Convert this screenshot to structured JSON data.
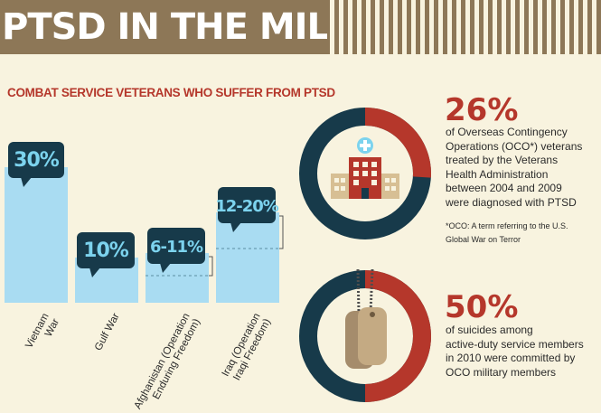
{
  "header": {
    "title": "PTSD IN THE MILITARY"
  },
  "chart_data": {
    "type": "bar",
    "title": "COMBAT SERVICE VETERANS WHO SUFFER FROM PTSD",
    "categories": [
      [
        "Vietnam",
        "War"
      ],
      [
        "Gulf War"
      ],
      [
        "Afghanistan (Operation",
        "Enduring Freedom)"
      ],
      [
        "Iraq (Operation",
        "Iraqi Freedom)"
      ]
    ],
    "value_labels": [
      "30%",
      "10%",
      "6-11%",
      "12-20%"
    ],
    "values": [
      30,
      10,
      11,
      20
    ],
    "low_values": [
      null,
      null,
      6,
      12
    ],
    "colors": {
      "bar": "#a9dcf2",
      "bubble": "#173a4a",
      "bubble_text": "#7cd3ee"
    }
  },
  "stats": [
    {
      "percent": "26%",
      "lines": [
        "of Overseas Contingency",
        "Operations (OCO*) veterans",
        "treated by the Veterans",
        "Health Administration",
        "between 2004 and 2009",
        "were diagnosed with PTSD"
      ],
      "note_lines": [
        "*OCO: A term referring to the U.S.",
        "Global War on Terror"
      ],
      "icon": "hospital-icon",
      "fraction": 0.26
    },
    {
      "percent": "50%",
      "lines": [
        "of suicides among",
        "active-duty service members",
        "in 2010 were committed by",
        "OCO military members"
      ],
      "icon": "dog-tags-icon",
      "fraction": 0.5
    }
  ],
  "colors": {
    "accent": "#b5372b",
    "navy": "#173a4a",
    "brown": "#8d7757",
    "background": "#f8f3df"
  }
}
